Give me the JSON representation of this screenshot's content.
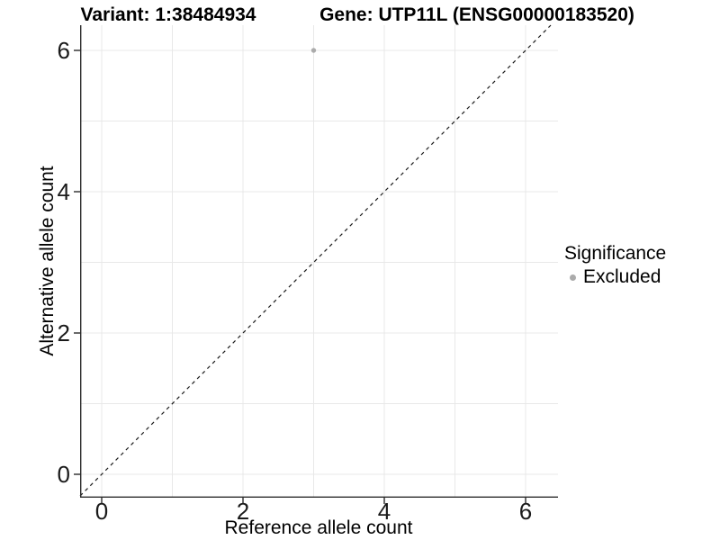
{
  "chart_data": {
    "type": "scatter",
    "title_left": "Variant: 1:38484934",
    "title_right": "Gene: UTP11L (ENSG00000183520)",
    "xlabel": "Reference allele count",
    "ylabel": "Alternative allele count",
    "xlim": [
      -0.31,
      6.46
    ],
    "ylim": [
      -0.33,
      6.36
    ],
    "x_ticks": [
      0,
      2,
      4,
      6
    ],
    "y_ticks": [
      0,
      2,
      4,
      6
    ],
    "gridlines": {
      "x": [
        0,
        1,
        2,
        3,
        4,
        5,
        6
      ],
      "y": [
        0,
        1,
        2,
        3,
        4,
        5,
        6
      ]
    },
    "grid_on": true,
    "series": [
      {
        "name": "Excluded",
        "color": "#ababab",
        "points": [
          {
            "x": 3,
            "y": 6
          }
        ]
      }
    ],
    "reference_line": {
      "type": "identity",
      "slope": 1,
      "intercept": 0,
      "style": "dashed",
      "color": "#1a1a1a"
    },
    "legend": {
      "position": "right",
      "title": "Significance",
      "items": [
        {
          "label": "Excluded",
          "color": "#ababab",
          "marker": "circle"
        }
      ]
    },
    "colors": {
      "background": "#ffffff",
      "gridline": "#e8e8e8",
      "axis": "#2b2b2b",
      "text": "#1a1a1a"
    }
  }
}
